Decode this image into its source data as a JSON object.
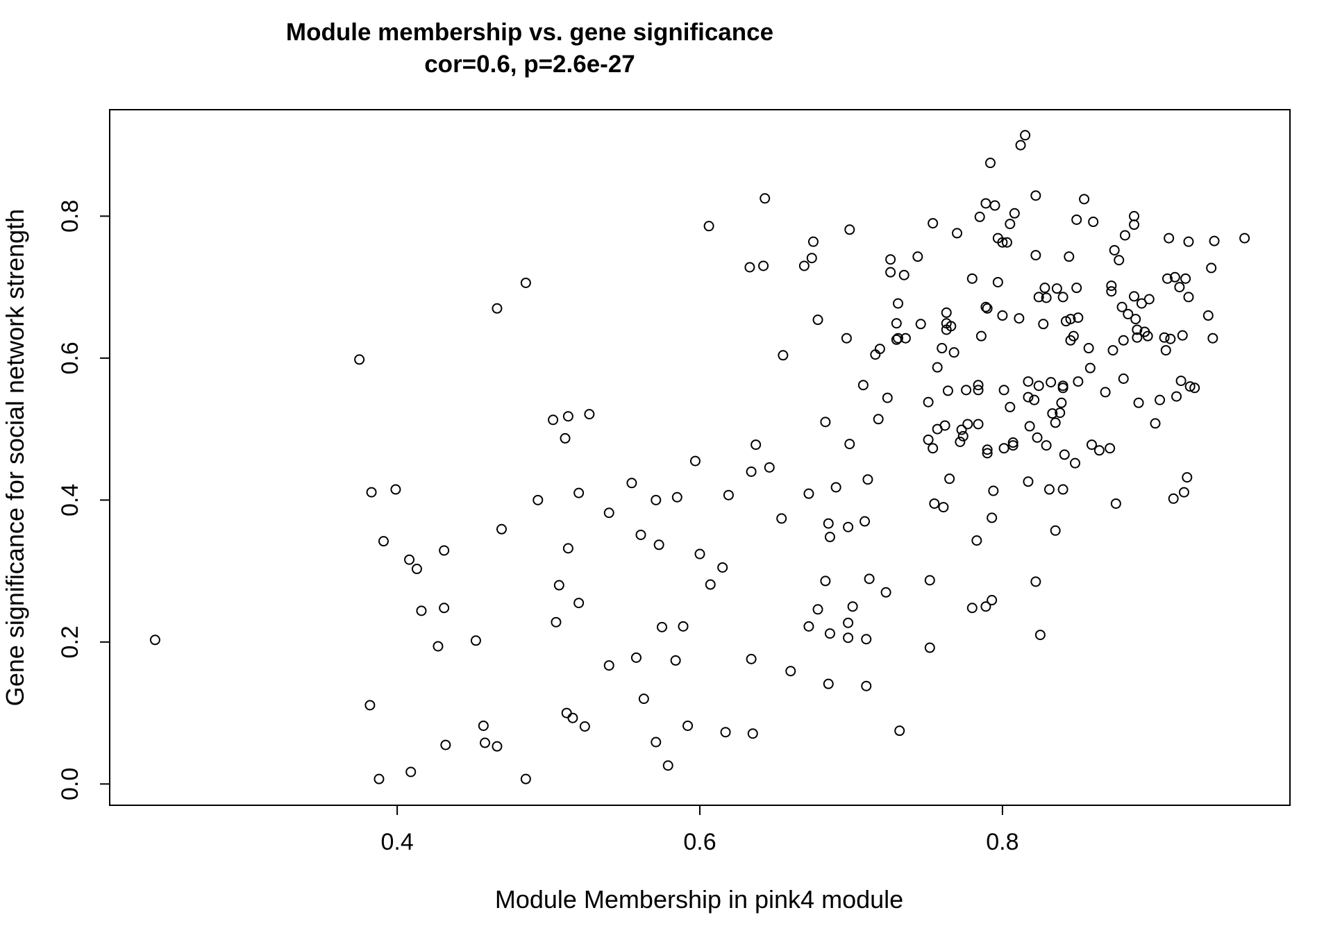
{
  "chart_data": {
    "type": "scatter",
    "title": "Module membership vs. gene significance",
    "subtitle": "cor=0.6, p=2.6e-27",
    "xlabel": "Module Membership in pink4 module",
    "ylabel": "Gene significance for social network strength",
    "xlim": [
      0.21,
      0.99
    ],
    "ylim": [
      -0.03,
      0.95
    ],
    "xticks": [
      0.4,
      0.6,
      0.8
    ],
    "yticks": [
      0.0,
      0.2,
      0.4,
      0.6,
      0.8
    ],
    "xtick_labels": [
      "0.4",
      "0.6",
      "0.8"
    ],
    "ytick_labels": [
      "0.0",
      "0.2",
      "0.4",
      "0.6",
      "0.8"
    ],
    "grid": false,
    "marker": "open-circle",
    "color": "#000000",
    "points": [
      [
        0.24,
        0.203
      ],
      [
        0.375,
        0.598
      ],
      [
        0.383,
        0.411
      ],
      [
        0.382,
        0.111
      ],
      [
        0.388,
        0.007
      ],
      [
        0.391,
        0.342
      ],
      [
        0.399,
        0.415
      ],
      [
        0.408,
        0.316
      ],
      [
        0.409,
        0.017
      ],
      [
        0.413,
        0.303
      ],
      [
        0.416,
        0.244
      ],
      [
        0.427,
        0.194
      ],
      [
        0.431,
        0.329
      ],
      [
        0.431,
        0.248
      ],
      [
        0.432,
        0.055
      ],
      [
        0.452,
        0.202
      ],
      [
        0.457,
        0.082
      ],
      [
        0.458,
        0.058
      ],
      [
        0.466,
        0.67
      ],
      [
        0.466,
        0.053
      ],
      [
        0.469,
        0.359
      ],
      [
        0.485,
        0.706
      ],
      [
        0.485,
        0.007
      ],
      [
        0.493,
        0.4
      ],
      [
        0.503,
        0.513
      ],
      [
        0.505,
        0.228
      ],
      [
        0.507,
        0.28
      ],
      [
        0.511,
        0.487
      ],
      [
        0.512,
        0.1
      ],
      [
        0.513,
        0.332
      ],
      [
        0.513,
        0.518
      ],
      [
        0.516,
        0.093
      ],
      [
        0.52,
        0.41
      ],
      [
        0.52,
        0.255
      ],
      [
        0.524,
        0.081
      ],
      [
        0.527,
        0.521
      ],
      [
        0.54,
        0.382
      ],
      [
        0.54,
        0.167
      ],
      [
        0.555,
        0.424
      ],
      [
        0.558,
        0.178
      ],
      [
        0.561,
        0.351
      ],
      [
        0.563,
        0.12
      ],
      [
        0.571,
        0.4
      ],
      [
        0.571,
        0.059
      ],
      [
        0.573,
        0.337
      ],
      [
        0.575,
        0.221
      ],
      [
        0.579,
        0.026
      ],
      [
        0.584,
        0.174
      ],
      [
        0.585,
        0.404
      ],
      [
        0.589,
        0.222
      ],
      [
        0.592,
        0.082
      ],
      [
        0.597,
        0.455
      ],
      [
        0.6,
        0.324
      ],
      [
        0.606,
        0.786
      ],
      [
        0.607,
        0.281
      ],
      [
        0.615,
        0.305
      ],
      [
        0.617,
        0.073
      ],
      [
        0.619,
        0.407
      ],
      [
        0.633,
        0.728
      ],
      [
        0.634,
        0.44
      ],
      [
        0.634,
        0.176
      ],
      [
        0.635,
        0.071
      ],
      [
        0.637,
        0.478
      ],
      [
        0.642,
        0.73
      ],
      [
        0.643,
        0.825
      ],
      [
        0.646,
        0.446
      ],
      [
        0.654,
        0.374
      ],
      [
        0.655,
        0.604
      ],
      [
        0.66,
        0.159
      ],
      [
        0.669,
        0.73
      ],
      [
        0.672,
        0.222
      ],
      [
        0.672,
        0.409
      ],
      [
        0.674,
        0.741
      ],
      [
        0.675,
        0.764
      ],
      [
        0.678,
        0.246
      ],
      [
        0.678,
        0.654
      ],
      [
        0.683,
        0.286
      ],
      [
        0.683,
        0.51
      ],
      [
        0.685,
        0.141
      ],
      [
        0.685,
        0.367
      ],
      [
        0.686,
        0.212
      ],
      [
        0.686,
        0.348
      ],
      [
        0.69,
        0.418
      ],
      [
        0.697,
        0.628
      ],
      [
        0.698,
        0.362
      ],
      [
        0.698,
        0.227
      ],
      [
        0.698,
        0.206
      ],
      [
        0.699,
        0.781
      ],
      [
        0.699,
        0.479
      ],
      [
        0.701,
        0.25
      ],
      [
        0.708,
        0.562
      ],
      [
        0.709,
        0.37
      ],
      [
        0.71,
        0.138
      ],
      [
        0.71,
        0.204
      ],
      [
        0.711,
        0.429
      ],
      [
        0.712,
        0.289
      ],
      [
        0.716,
        0.605
      ],
      [
        0.718,
        0.514
      ],
      [
        0.719,
        0.613
      ],
      [
        0.723,
        0.27
      ],
      [
        0.724,
        0.544
      ],
      [
        0.726,
        0.739
      ],
      [
        0.726,
        0.721
      ],
      [
        0.73,
        0.649
      ],
      [
        0.73,
        0.626
      ],
      [
        0.731,
        0.677
      ],
      [
        0.731,
        0.628
      ],
      [
        0.732,
        0.075
      ],
      [
        0.735,
        0.717
      ],
      [
        0.736,
        0.628
      ],
      [
        0.744,
        0.743
      ],
      [
        0.746,
        0.648
      ],
      [
        0.751,
        0.485
      ],
      [
        0.751,
        0.538
      ],
      [
        0.752,
        0.287
      ],
      [
        0.752,
        0.192
      ],
      [
        0.754,
        0.79
      ],
      [
        0.754,
        0.473
      ],
      [
        0.755,
        0.395
      ],
      [
        0.757,
        0.5
      ],
      [
        0.757,
        0.587
      ],
      [
        0.76,
        0.614
      ],
      [
        0.761,
        0.39
      ],
      [
        0.762,
        0.505
      ],
      [
        0.763,
        0.649
      ],
      [
        0.763,
        0.664
      ],
      [
        0.763,
        0.64
      ],
      [
        0.764,
        0.554
      ],
      [
        0.765,
        0.43
      ],
      [
        0.766,
        0.645
      ],
      [
        0.768,
        0.608
      ],
      [
        0.77,
        0.776
      ],
      [
        0.772,
        0.482
      ],
      [
        0.773,
        0.499
      ],
      [
        0.774,
        0.49
      ],
      [
        0.776,
        0.555
      ],
      [
        0.777,
        0.507
      ],
      [
        0.78,
        0.712
      ],
      [
        0.78,
        0.248
      ],
      [
        0.783,
        0.343
      ],
      [
        0.784,
        0.507
      ],
      [
        0.784,
        0.562
      ],
      [
        0.784,
        0.555
      ],
      [
        0.785,
        0.799
      ],
      [
        0.786,
        0.631
      ],
      [
        0.789,
        0.818
      ],
      [
        0.789,
        0.672
      ],
      [
        0.789,
        0.25
      ],
      [
        0.79,
        0.67
      ],
      [
        0.79,
        0.471
      ],
      [
        0.79,
        0.466
      ],
      [
        0.792,
        0.875
      ],
      [
        0.793,
        0.259
      ],
      [
        0.793,
        0.375
      ],
      [
        0.794,
        0.413
      ],
      [
        0.795,
        0.815
      ],
      [
        0.797,
        0.769
      ],
      [
        0.797,
        0.707
      ],
      [
        0.8,
        0.763
      ],
      [
        0.8,
        0.66
      ],
      [
        0.801,
        0.555
      ],
      [
        0.801,
        0.473
      ],
      [
        0.803,
        0.763
      ],
      [
        0.805,
        0.531
      ],
      [
        0.805,
        0.789
      ],
      [
        0.807,
        0.481
      ],
      [
        0.807,
        0.477
      ],
      [
        0.808,
        0.804
      ],
      [
        0.811,
        0.656
      ],
      [
        0.812,
        0.9
      ],
      [
        0.815,
        0.914
      ],
      [
        0.817,
        0.426
      ],
      [
        0.817,
        0.567
      ],
      [
        0.817,
        0.545
      ],
      [
        0.818,
        0.504
      ],
      [
        0.821,
        0.541
      ],
      [
        0.822,
        0.829
      ],
      [
        0.822,
        0.745
      ],
      [
        0.822,
        0.285
      ],
      [
        0.823,
        0.488
      ],
      [
        0.824,
        0.686
      ],
      [
        0.824,
        0.561
      ],
      [
        0.825,
        0.21
      ],
      [
        0.827,
        0.648
      ],
      [
        0.828,
        0.699
      ],
      [
        0.829,
        0.477
      ],
      [
        0.829,
        0.685
      ],
      [
        0.831,
        0.415
      ],
      [
        0.832,
        0.566
      ],
      [
        0.833,
        0.522
      ],
      [
        0.835,
        0.357
      ],
      [
        0.835,
        0.509
      ],
      [
        0.836,
        0.698
      ],
      [
        0.838,
        0.523
      ],
      [
        0.839,
        0.537
      ],
      [
        0.84,
        0.686
      ],
      [
        0.84,
        0.558
      ],
      [
        0.84,
        0.415
      ],
      [
        0.84,
        0.561
      ],
      [
        0.841,
        0.464
      ],
      [
        0.842,
        0.652
      ],
      [
        0.844,
        0.743
      ],
      [
        0.845,
        0.655
      ],
      [
        0.845,
        0.625
      ],
      [
        0.847,
        0.631
      ],
      [
        0.848,
        0.452
      ],
      [
        0.849,
        0.699
      ],
      [
        0.849,
        0.795
      ],
      [
        0.85,
        0.657
      ],
      [
        0.85,
        0.567
      ],
      [
        0.854,
        0.824
      ],
      [
        0.857,
        0.614
      ],
      [
        0.858,
        0.586
      ],
      [
        0.859,
        0.478
      ],
      [
        0.86,
        0.792
      ],
      [
        0.864,
        0.47
      ],
      [
        0.868,
        0.552
      ],
      [
        0.871,
        0.473
      ],
      [
        0.872,
        0.702
      ],
      [
        0.872,
        0.694
      ],
      [
        0.873,
        0.611
      ],
      [
        0.874,
        0.752
      ],
      [
        0.875,
        0.395
      ],
      [
        0.877,
        0.738
      ],
      [
        0.879,
        0.672
      ],
      [
        0.88,
        0.571
      ],
      [
        0.88,
        0.625
      ],
      [
        0.881,
        0.773
      ],
      [
        0.883,
        0.662
      ],
      [
        0.887,
        0.8
      ],
      [
        0.887,
        0.788
      ],
      [
        0.887,
        0.687
      ],
      [
        0.888,
        0.655
      ],
      [
        0.889,
        0.629
      ],
      [
        0.889,
        0.64
      ],
      [
        0.89,
        0.537
      ],
      [
        0.892,
        0.677
      ],
      [
        0.894,
        0.637
      ],
      [
        0.896,
        0.631
      ],
      [
        0.897,
        0.683
      ],
      [
        0.901,
        0.508
      ],
      [
        0.904,
        0.541
      ],
      [
        0.907,
        0.629
      ],
      [
        0.908,
        0.611
      ],
      [
        0.909,
        0.712
      ],
      [
        0.91,
        0.769
      ],
      [
        0.911,
        0.627
      ],
      [
        0.913,
        0.402
      ],
      [
        0.914,
        0.714
      ],
      [
        0.915,
        0.546
      ],
      [
        0.917,
        0.7
      ],
      [
        0.918,
        0.568
      ],
      [
        0.919,
        0.632
      ],
      [
        0.92,
        0.411
      ],
      [
        0.921,
        0.712
      ],
      [
        0.922,
        0.432
      ],
      [
        0.923,
        0.764
      ],
      [
        0.923,
        0.686
      ],
      [
        0.924,
        0.56
      ],
      [
        0.927,
        0.558
      ],
      [
        0.936,
        0.66
      ],
      [
        0.938,
        0.727
      ],
      [
        0.939,
        0.628
      ],
      [
        0.94,
        0.765
      ],
      [
        0.96,
        0.769
      ]
    ]
  }
}
